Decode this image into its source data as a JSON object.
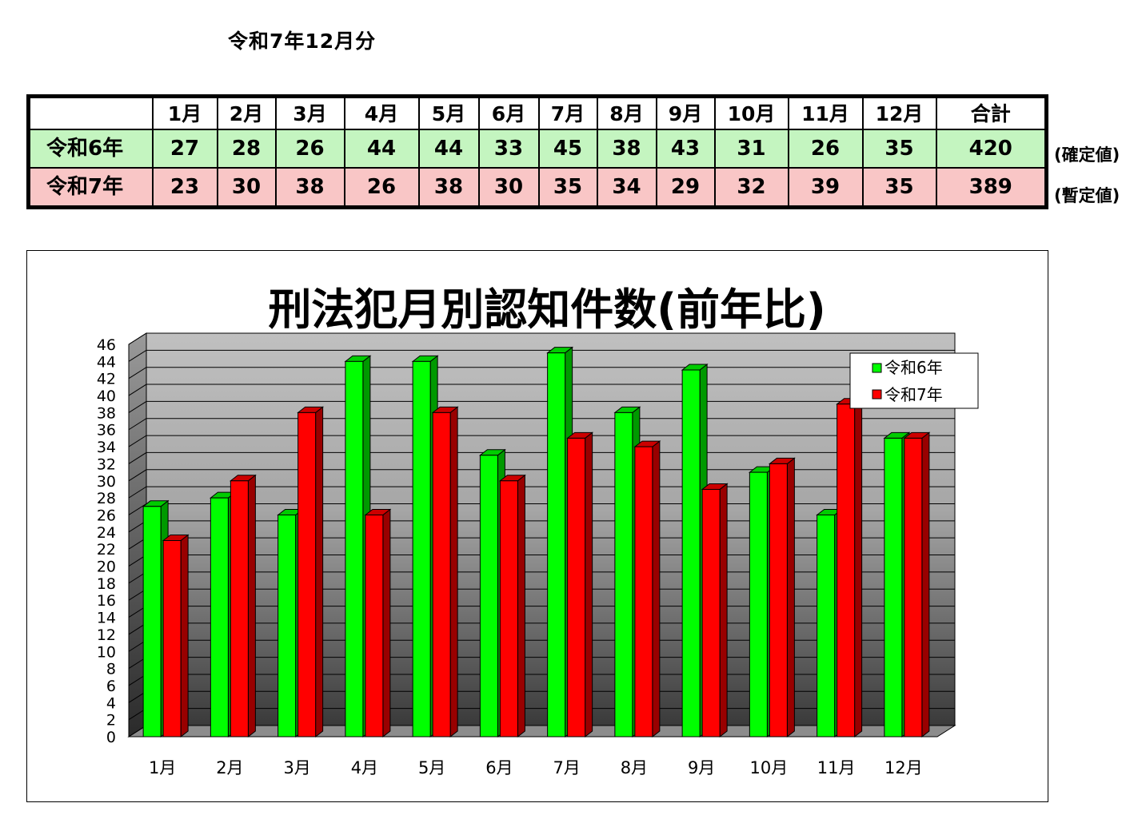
{
  "heading": "令和7年12月分",
  "table": {
    "header": [
      "",
      "1月",
      "2月",
      "3月",
      "4月",
      "5月",
      "6月",
      "7月",
      "8月",
      "9月",
      "10月",
      "11月",
      "12月",
      "合計"
    ],
    "rows": [
      {
        "label": "令和6年",
        "values": [
          "27",
          "28",
          "26",
          "44",
          "44",
          "33",
          "45",
          "38",
          "43",
          "31",
          "26",
          "35"
        ],
        "total": "420",
        "note": "(確定値)"
      },
      {
        "label": "令和7年",
        "values": [
          "23",
          "30",
          "38",
          "26",
          "38",
          "30",
          "35",
          "34",
          "29",
          "32",
          "39",
          "35"
        ],
        "total": "389",
        "note": "(暫定値)"
      }
    ]
  },
  "colors": {
    "r6_row": "#c4f5c0",
    "r7_row": "#f9c6c6",
    "series6": "#00ff00",
    "series7": "#ff0000"
  },
  "chart_data": {
    "type": "bar",
    "title": "刑法犯月別認知件数(前年比)",
    "categories": [
      "1月",
      "2月",
      "3月",
      "4月",
      "5月",
      "6月",
      "7月",
      "8月",
      "9月",
      "10月",
      "11月",
      "12月"
    ],
    "series": [
      {
        "name": "令和6年",
        "values": [
          27,
          28,
          26,
          44,
          44,
          33,
          45,
          38,
          43,
          31,
          26,
          35
        ],
        "color": "#00ff00"
      },
      {
        "name": "令和7年",
        "values": [
          23,
          30,
          38,
          26,
          38,
          30,
          35,
          34,
          29,
          32,
          39,
          35
        ],
        "color": "#ff0000"
      }
    ],
    "yticks": [
      0,
      2,
      4,
      6,
      8,
      10,
      12,
      14,
      16,
      18,
      20,
      22,
      24,
      26,
      28,
      30,
      32,
      34,
      36,
      38,
      40,
      42,
      44,
      46
    ],
    "ylim": [
      0,
      46
    ],
    "legend": "top-right",
    "grid": true,
    "style": "3d-column"
  }
}
